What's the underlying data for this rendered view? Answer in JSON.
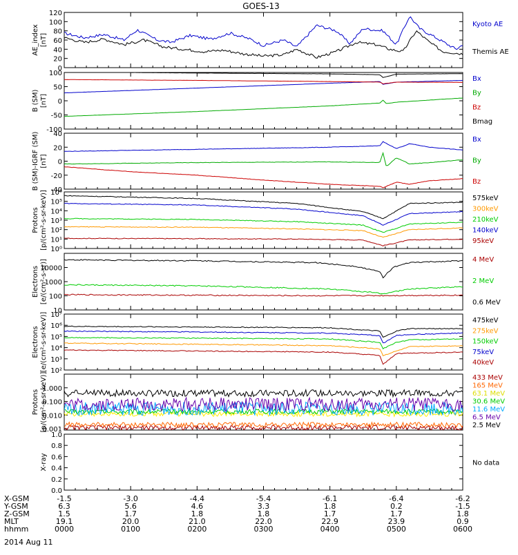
{
  "title": "GOES-13",
  "time_axis": {
    "rows": [
      {
        "label": "X-GSM",
        "values": [
          "-1.5",
          "-3.0",
          "-4.4",
          "-5.4",
          "-6.1",
          "-6.4",
          "-6.2"
        ]
      },
      {
        "label": "Y-GSM",
        "values": [
          "6.3",
          "5.6",
          "4.6",
          "3.3",
          "1.8",
          "0.2",
          "-1.5"
        ]
      },
      {
        "label": "Z-GSM",
        "values": [
          "1.5",
          "1.7",
          "1.8",
          "1.8",
          "1.7",
          "1.7",
          "1.8"
        ]
      },
      {
        "label": "MLT",
        "values": [
          "19.1",
          "20.0",
          "21.0",
          "22.0",
          "22.9",
          "23.9",
          "0.9"
        ]
      },
      {
        "label": "hhmm",
        "values": [
          "0000",
          "0100",
          "0200",
          "0300",
          "0400",
          "0500",
          "0600"
        ]
      }
    ],
    "date": "2014 Aug 11"
  },
  "chart_data": [
    {
      "type": "line",
      "ylabel": "AE_index\n[nT]",
      "ylim": [
        0,
        120
      ],
      "yticks": [
        "0",
        "20",
        "40",
        "60",
        "80",
        "100",
        "120"
      ],
      "series": [
        {
          "name": "Kyoto AE",
          "color": "#0000cc",
          "x": [
            0,
            0.3,
            0.6,
            0.9,
            1.1,
            1.4,
            1.6,
            1.9,
            2.2,
            2.5,
            2.8,
            3.0,
            3.3,
            3.5,
            3.8,
            4.1,
            4.3,
            4.5,
            4.8,
            5.0,
            5.2,
            5.35,
            5.6,
            5.9,
            6.0
          ],
          "y": [
            75,
            65,
            72,
            60,
            82,
            60,
            55,
            70,
            62,
            75,
            62,
            48,
            60,
            45,
            92,
            80,
            52,
            85,
            80,
            50,
            112,
            85,
            65,
            40,
            50
          ]
        },
        {
          "name": "Themis AE",
          "color": "#000000",
          "x": [
            0,
            0.3,
            0.6,
            0.9,
            1.2,
            1.5,
            1.8,
            2.1,
            2.4,
            2.7,
            3.0,
            3.3,
            3.5,
            3.8,
            4.1,
            4.4,
            4.7,
            4.9,
            5.1,
            5.3,
            5.5,
            5.7,
            6.0
          ],
          "y": [
            65,
            55,
            62,
            50,
            60,
            45,
            40,
            35,
            38,
            30,
            25,
            28,
            40,
            22,
            35,
            55,
            50,
            40,
            35,
            80,
            55,
            35,
            30
          ]
        }
      ]
    },
    {
      "type": "line",
      "ylabel": "B (SM)\n[nT]",
      "ylim": [
        -100,
        100
      ],
      "yticks": [
        "-100",
        "-50",
        "0",
        "50",
        "100"
      ],
      "series": [
        {
          "name": "Bx",
          "color": "#0000cc",
          "x": [
            0,
            2,
            4,
            4.75,
            4.8,
            5,
            6
          ],
          "y": [
            28,
            45,
            62,
            68,
            58,
            66,
            72
          ]
        },
        {
          "name": "By",
          "color": "#00aa00",
          "x": [
            0,
            2,
            4,
            4.75,
            4.8,
            4.85,
            5,
            6
          ],
          "y": [
            -55,
            -38,
            -18,
            -8,
            2,
            -10,
            -5,
            10
          ]
        },
        {
          "name": "Bz",
          "color": "#cc0000",
          "x": [
            0,
            2,
            4,
            4.75,
            4.8,
            5,
            6
          ],
          "y": [
            75,
            72,
            68,
            66,
            60,
            66,
            65
          ]
        },
        {
          "name": "Bmag",
          "color": "#000000",
          "x": [
            0,
            2,
            4,
            4.75,
            4.8,
            5,
            6
          ],
          "y": [
            102,
            98,
            95,
            92,
            82,
            94,
            96
          ]
        }
      ]
    },
    {
      "type": "line",
      "ylabel": "B (SM)-IGRF (SM)\n[nT]",
      "ylim": [
        -40,
        40
      ],
      "yticks": [
        "-40",
        "-20",
        "0",
        "20",
        "40"
      ],
      "series": [
        {
          "name": "Bx",
          "color": "#0000cc",
          "x": [
            0,
            2,
            4,
            4.75,
            4.8,
            5,
            5.2,
            5.5,
            6
          ],
          "y": [
            14,
            17,
            20,
            22,
            28,
            18,
            25,
            20,
            16
          ]
        },
        {
          "name": "By",
          "color": "#00aa00",
          "x": [
            0,
            2,
            4,
            4.75,
            4.8,
            4.85,
            5,
            5.2,
            5.5,
            6
          ],
          "y": [
            -4,
            -2,
            -1,
            -2,
            12,
            -8,
            5,
            -4,
            -2,
            2
          ]
        },
        {
          "name": "Bz",
          "color": "#cc0000",
          "x": [
            0,
            1,
            2,
            3,
            4,
            4.75,
            4.8,
            5,
            5.2,
            5.5,
            6
          ],
          "y": [
            -8,
            -15,
            -20,
            -27,
            -33,
            -36,
            -38,
            -30,
            -33,
            -28,
            -25
          ]
        }
      ]
    },
    {
      "type": "line",
      "ylabel": "Protons\n[p/(cm²-s-sr-keV)]",
      "yscale": "log",
      "ylim": [
        1,
        1000000
      ],
      "yticks": [
        "10⁰",
        "10¹",
        "10²",
        "10³",
        "10⁴",
        "10⁵",
        "10⁶"
      ],
      "series": [
        {
          "name": "575keV",
          "color": "#000000",
          "x": [
            0,
            2,
            3.5,
            4.5,
            4.8,
            5.2,
            6
          ],
          "y": [
            400000,
            200000,
            60000,
            8000,
            1500,
            60000,
            80000
          ]
        },
        {
          "name": "300keV",
          "color": "#ff9900",
          "x": [
            0,
            2,
            3.5,
            4.5,
            4.8,
            5.2,
            6
          ],
          "y": [
            200,
            180,
            120,
            80,
            15,
            100,
            150
          ]
        },
        {
          "name": "210keV",
          "color": "#00cc00",
          "x": [
            0,
            2,
            3.5,
            4.5,
            4.8,
            5.2,
            6
          ],
          "y": [
            1500,
            1200,
            700,
            300,
            50,
            400,
            600
          ]
        },
        {
          "name": "140keV",
          "color": "#0000cc",
          "x": [
            0,
            2,
            3.5,
            4.5,
            4.8,
            5.2,
            6
          ],
          "y": [
            60000,
            40000,
            15000,
            3000,
            300,
            5000,
            8000
          ]
        },
        {
          "name": "95keV",
          "color": "#aa0000",
          "x": [
            0,
            2,
            3.5,
            4.5,
            4.8,
            5.2,
            6
          ],
          "y": [
            12,
            11,
            10,
            8,
            2,
            8,
            10
          ]
        }
      ]
    },
    {
      "type": "line",
      "ylabel": "Electrons\n[e/(cm²-s-sr)]",
      "yscale": "log",
      "ylim": [
        1,
        10000
      ],
      "yticks": [
        "10",
        "100",
        "1000",
        "10000"
      ],
      "series": [
        {
          "name": "4 MeV",
          "color": "#aa0000",
          "x": [
            0,
            2,
            4,
            6
          ],
          "y": [
            12,
            11,
            10,
            11
          ]
        },
        {
          "name": "2 MeV",
          "color": "#00cc00",
          "x": [
            0,
            1,
            2,
            3,
            4,
            4.6,
            4.8,
            5.2,
            6
          ],
          "y": [
            60,
            55,
            50,
            40,
            30,
            18,
            14,
            30,
            45
          ]
        },
        {
          "name": "0.6 MeV",
          "color": "#000000",
          "x": [
            0,
            1,
            2,
            3,
            3.8,
            4.4,
            4.75,
            4.8,
            4.95,
            5.2,
            5.5,
            6
          ],
          "y": [
            3500,
            3200,
            3000,
            2500,
            2200,
            1200,
            500,
            200,
            1000,
            2200,
            2500,
            3000
          ]
        }
      ]
    },
    {
      "type": "line",
      "ylabel": "Electrons\n[e/(cm²-s-sr-keV)]",
      "yscale": "log",
      "ylim": [
        100,
        10000000
      ],
      "yticks": [
        "10²",
        "10³",
        "10⁴",
        "10⁵",
        "10⁶",
        "10⁷"
      ],
      "series": [
        {
          "name": "475keV",
          "color": "#000000",
          "x": [
            0,
            2,
            4,
            4.75,
            4.8,
            5,
            5.2,
            6
          ],
          "y": [
            800000,
            700000,
            600000,
            300000,
            80000,
            300000,
            500000,
            500000
          ]
        },
        {
          "name": "275keV",
          "color": "#ff9900",
          "x": [
            0,
            2,
            4,
            4.75,
            4.8,
            5.2,
            6
          ],
          "y": [
            25000,
            20000,
            15000,
            8000,
            2000,
            12000,
            15000
          ]
        },
        {
          "name": "150keV",
          "color": "#00cc00",
          "x": [
            0,
            2,
            4,
            4.75,
            4.8,
            5,
            5.2,
            6
          ],
          "y": [
            80000,
            70000,
            60000,
            30000,
            8000,
            30000,
            50000,
            60000
          ]
        },
        {
          "name": "75keV",
          "color": "#0000cc",
          "x": [
            0,
            2,
            4,
            4.75,
            4.8,
            5,
            5.2,
            6
          ],
          "y": [
            300000,
            250000,
            200000,
            120000,
            25000,
            120000,
            150000,
            200000
          ]
        },
        {
          "name": "40keV",
          "color": "#aa0000",
          "x": [
            0,
            2,
            4,
            4.75,
            4.8,
            5,
            6
          ],
          "y": [
            6000,
            5000,
            4000,
            2000,
            300,
            3000,
            4000
          ]
        }
      ]
    },
    {
      "type": "line",
      "ylabel": "Protons\n[p/(cm²-s-sr-keV)]",
      "yscale": "log",
      "ylim": [
        0.0008,
        10
      ],
      "yticks": [
        "0.001",
        "0.010",
        "0.100",
        "1.000"
      ],
      "series": [
        {
          "name": "433 MeV",
          "color": "#aa0000",
          "base": 0.0012
        },
        {
          "name": "165 MeV",
          "color": "#ff6600",
          "base": 0.002
        },
        {
          "name": "63.1 MeV",
          "color": "#ffee00",
          "base": 0.012
        },
        {
          "name": "30.6 MeV",
          "color": "#00cc00",
          "base": 0.018
        },
        {
          "name": "11.6 MeV",
          "color": "#00aaff",
          "base": 0.03
        },
        {
          "name": "6.5 MeV",
          "color": "#6600aa",
          "base": 0.06
        },
        {
          "name": "2.5 MeV",
          "color": "#000000",
          "base": 0.45
        }
      ]
    },
    {
      "type": "line",
      "ylabel": "X-ray",
      "ylim": [
        0,
        1.0
      ],
      "yticks": [
        "0.0",
        "0.2",
        "0.4",
        "0.6",
        "0.8",
        "1.0"
      ],
      "series": [],
      "note": "No data"
    }
  ]
}
